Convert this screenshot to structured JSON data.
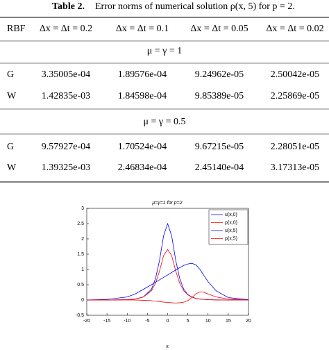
{
  "table": {
    "caption_label": "Table 2.",
    "caption": "Error norms of numerical solution ρ(x, 5) for p = 2.",
    "header": [
      "RBF",
      "Δx = Δt = 0.2",
      "Δx = Δt = 0.1",
      "Δx = Δt = 0.05",
      "Δx = Δt = 0.02"
    ],
    "sections": [
      {
        "title": "μ = γ = 1",
        "rows": [
          [
            "G",
            "3.35005e-04",
            "1.89576e-04",
            "9.24962e-05",
            "2.50042e-05"
          ],
          [
            "W",
            "1.42835e-03",
            "1.84598e-04",
            "9.85389e-05",
            "2.25869e-05"
          ]
        ]
      },
      {
        "title": "μ = γ = 0.5",
        "rows": [
          [
            "G",
            "9.57927e-04",
            "1.70524e-04",
            "9.67215e-05",
            "2.28051e-05"
          ],
          [
            "W",
            "1.39325e-03",
            "2.46834e-04",
            "2.45140e-04",
            "3.17313e-05"
          ]
        ]
      }
    ]
  },
  "chart_data": {
    "type": "line",
    "title": "μ=γ=1 for p=2",
    "x_label": "x",
    "x": [
      -20,
      -15,
      -10,
      -8,
      -6,
      -4,
      -3,
      -2,
      -1,
      0,
      1,
      2,
      3,
      4,
      5,
      6,
      7,
      8,
      9,
      10,
      12,
      15,
      20
    ],
    "series": [
      {
        "name": "u(x,0)",
        "color": "#0000ff",
        "values": [
          0,
          0,
          0.01,
          0.03,
          0.1,
          0.35,
          0.7,
          1.3,
          2.1,
          2.5,
          2.1,
          1.3,
          0.7,
          0.35,
          0.18,
          0.1,
          0.05,
          0.03,
          0.02,
          0.01,
          0.005,
          0,
          0
        ]
      },
      {
        "name": "ρ(x,0)",
        "color": "#ff0000",
        "values": [
          0,
          0,
          0.01,
          0.03,
          0.1,
          0.3,
          0.55,
          0.95,
          1.45,
          1.65,
          1.45,
          0.95,
          0.55,
          0.3,
          0.17,
          0.09,
          0.05,
          0.03,
          0.02,
          0.01,
          0,
          0,
          0
        ]
      },
      {
        "name": "u(x,5)",
        "color": "#0000ff",
        "values": [
          0,
          0.02,
          0.1,
          0.2,
          0.35,
          0.5,
          0.58,
          0.66,
          0.74,
          0.82,
          0.9,
          0.98,
          1.06,
          1.13,
          1.18,
          1.2,
          1.15,
          1.0,
          0.8,
          0.6,
          0.3,
          0.08,
          0.01
        ]
      },
      {
        "name": "ρ(x,5)",
        "color": "#ff0000",
        "values": [
          0,
          0,
          0,
          0,
          -0.01,
          -0.02,
          -0.04,
          -0.05,
          -0.07,
          -0.08,
          -0.09,
          -0.1,
          -0.09,
          -0.07,
          -0.02,
          0.08,
          0.2,
          0.27,
          0.25,
          0.2,
          0.1,
          0.03,
          0
        ]
      }
    ],
    "xlim": [
      -20,
      20
    ],
    "xticks": [
      -20,
      -15,
      -10,
      -5,
      0,
      5,
      10,
      15,
      20
    ],
    "ylim": [
      -0.5,
      3
    ],
    "yticks": [
      -0.5,
      0,
      0.5,
      1,
      1.5,
      2,
      2.5,
      3
    ],
    "legend": "upper right"
  }
}
